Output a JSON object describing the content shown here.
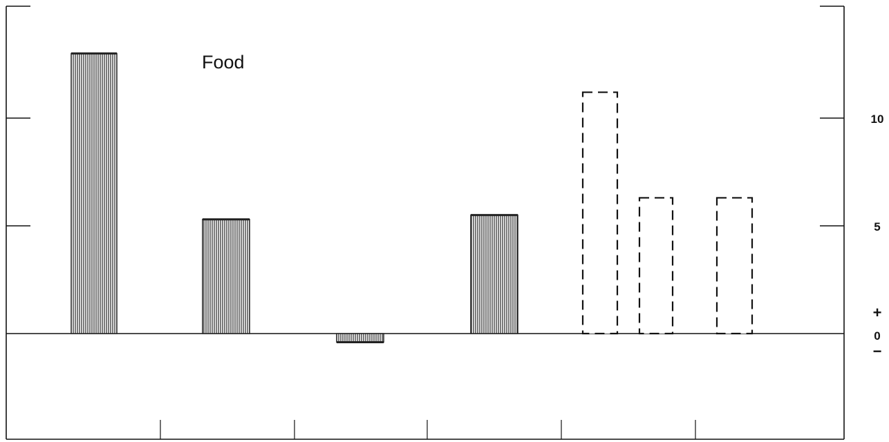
{
  "chart_data": {
    "type": "bar",
    "title": "",
    "panel_label": "Food",
    "xlabel": "",
    "ylabel": "",
    "ylim": [
      -4.5,
      15
    ],
    "y_ticks": [
      {
        "value": 10,
        "label": "10"
      },
      {
        "value": 5,
        "label": "5"
      }
    ],
    "zero_label": "0",
    "positive_sign": "+",
    "negative_sign": "−",
    "grid": false,
    "legend": "none",
    "series": [
      {
        "style": "hatched",
        "values": [
          13.0,
          5.3,
          -0.4,
          5.5
        ]
      },
      {
        "style": "dashed-outline",
        "values": [
          11.2,
          6.3,
          6.3
        ]
      }
    ],
    "colors": {
      "bar_fill": "#ffffff",
      "bar_hatch": "#222222",
      "axis": "#111111"
    }
  }
}
